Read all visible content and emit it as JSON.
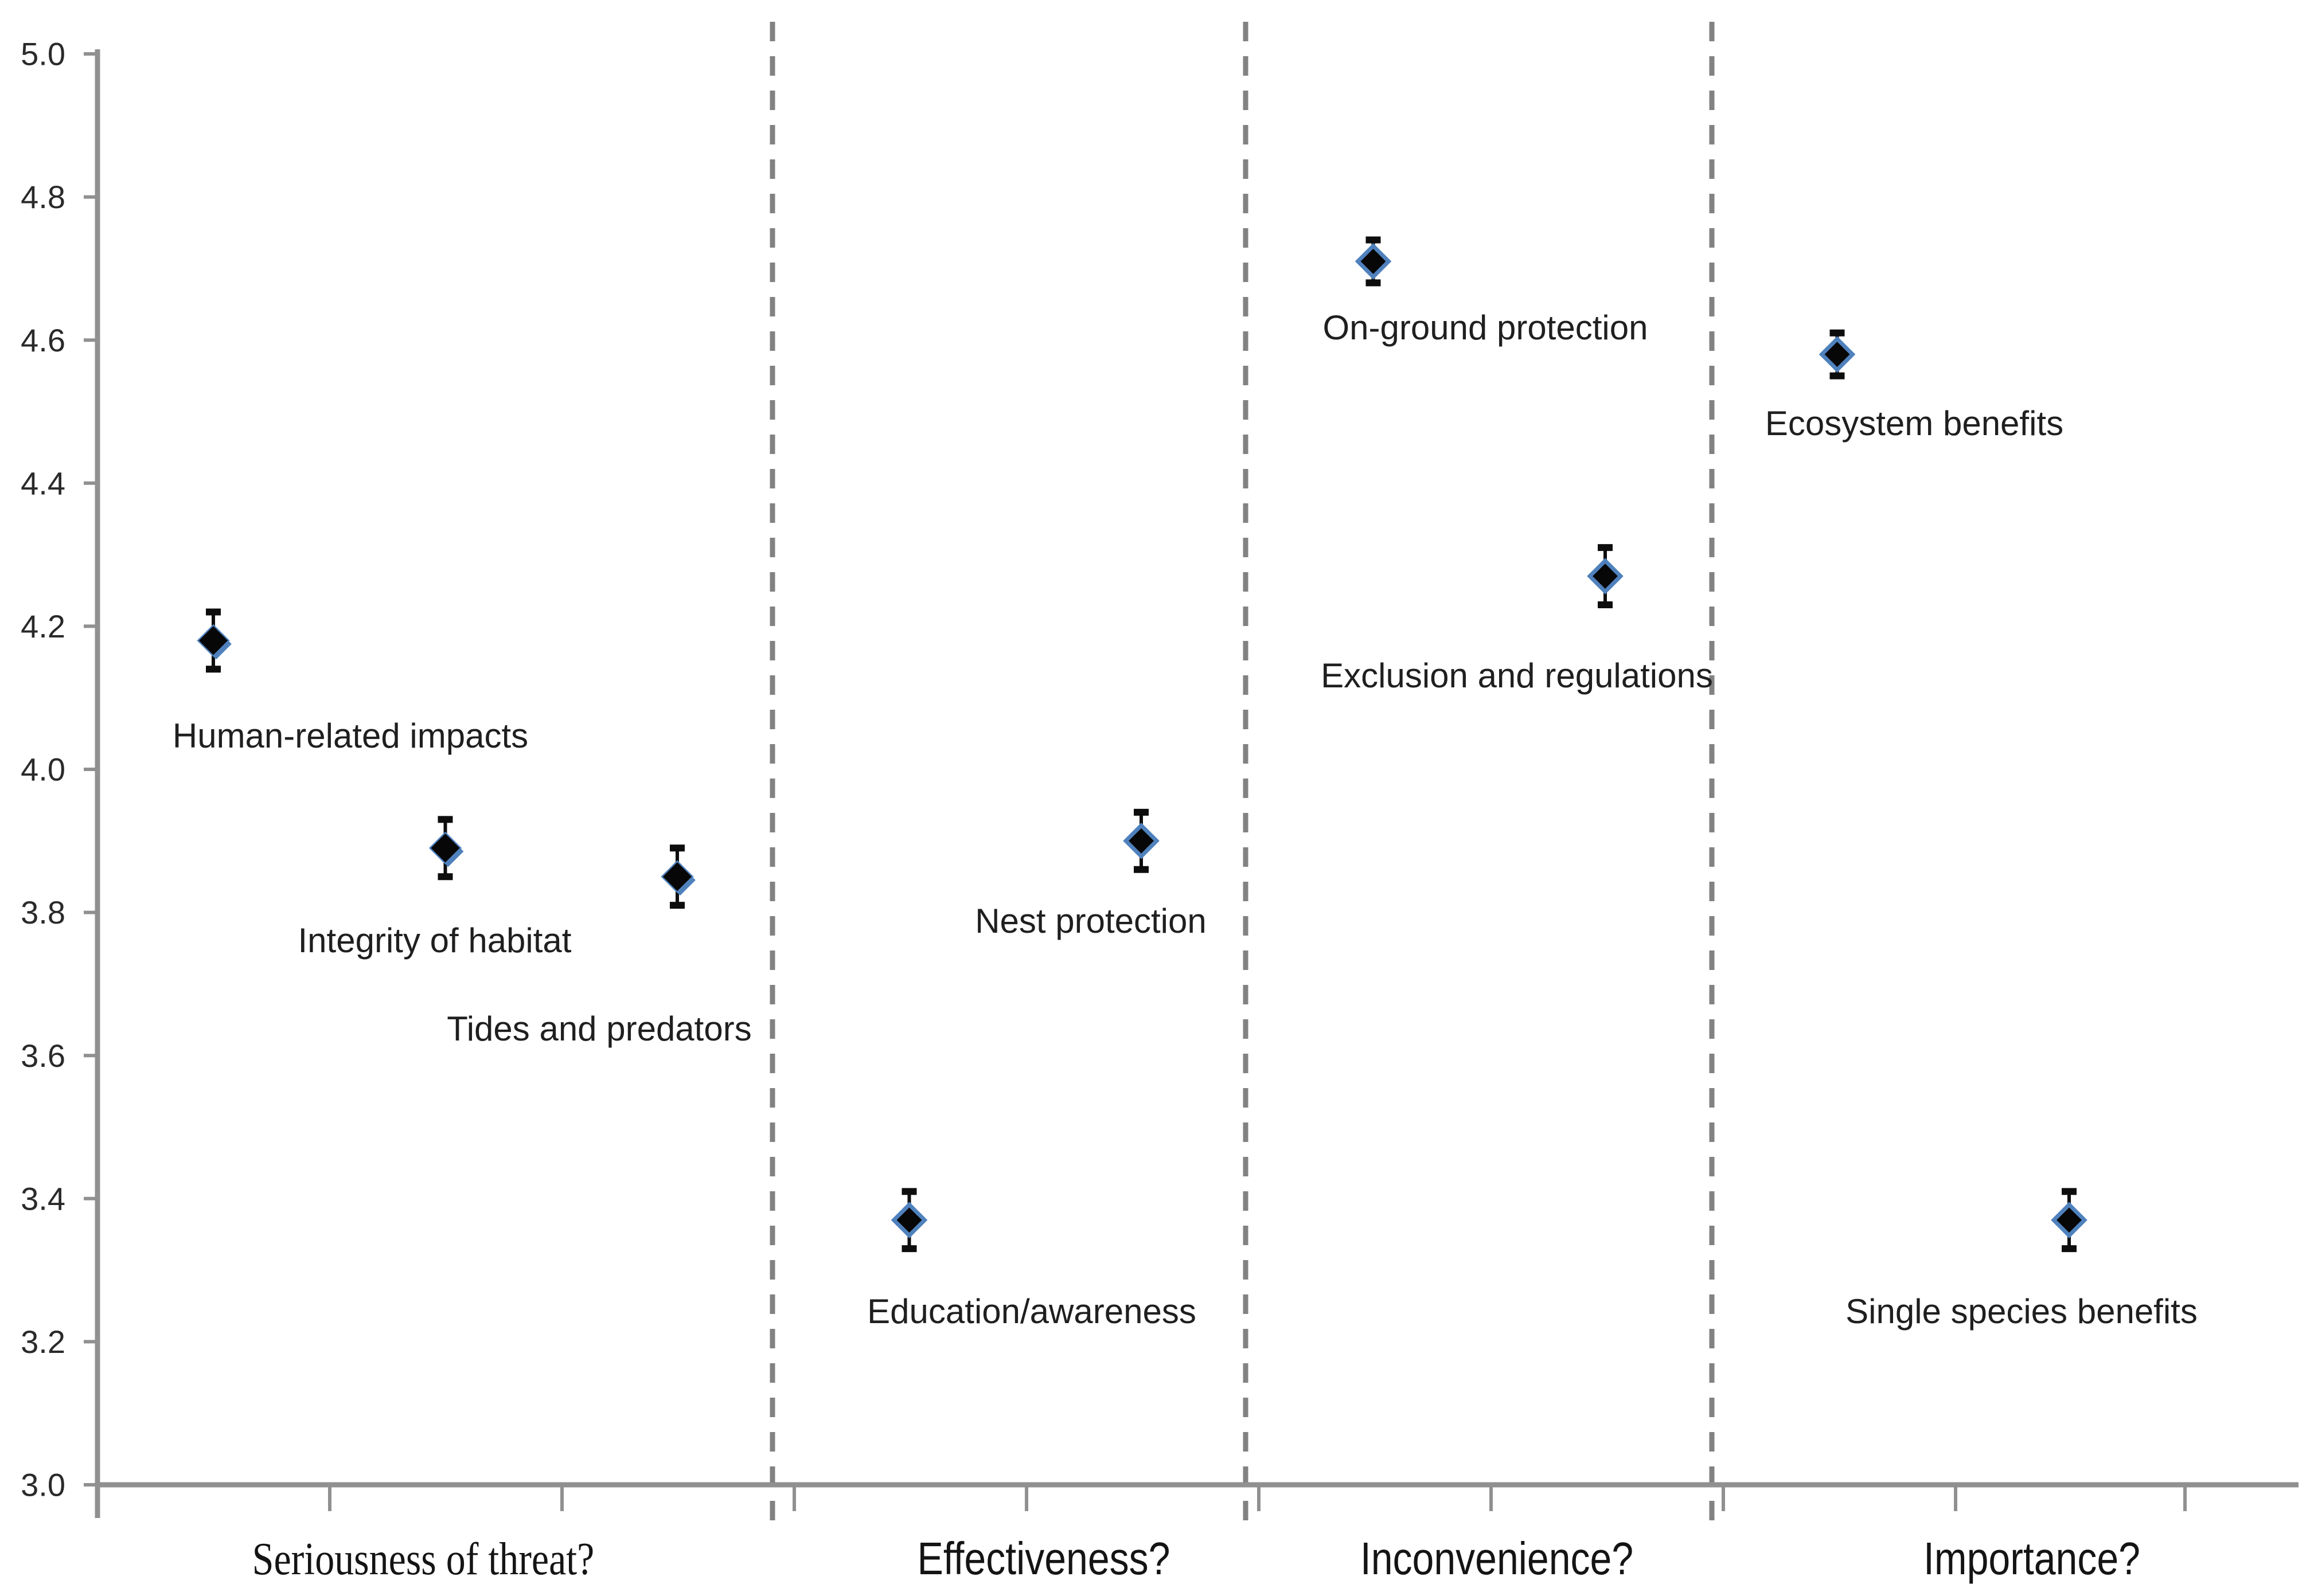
{
  "chart_data": {
    "type": "scatter",
    "title": "",
    "xlabel": "",
    "ylabel": "",
    "ylim": [
      3.0,
      5.0
    ],
    "ytick_step": 0.2,
    "yticks": [
      "5.0",
      "4.8",
      "4.6",
      "4.4",
      "4.2",
      "4.0",
      "3.8",
      "3.6",
      "3.4",
      "3.2",
      "3.0"
    ],
    "grid": false,
    "legend_position": "none",
    "marker": "diamond",
    "error_bars": true,
    "sections": [
      {
        "label": "Seriousness of threat?"
      },
      {
        "label": "Effectiveness?"
      },
      {
        "label": "Inconvenience?"
      },
      {
        "label": "Importance?"
      }
    ],
    "points": [
      {
        "label": "Human-related impacts",
        "section": "Seriousness of threat?",
        "value": 4.18,
        "error": 0.04
      },
      {
        "label": "Integrity of habitat",
        "section": "Seriousness of threat?",
        "value": 3.89,
        "error": 0.04
      },
      {
        "label": "Tides and predators",
        "section": "Seriousness of threat?",
        "value": 3.85,
        "error": 0.04
      },
      {
        "label": "Education/awareness",
        "section": "Effectiveness?",
        "value": 3.37,
        "error": 0.04
      },
      {
        "label": "Nest protection",
        "section": "Effectiveness?",
        "value": 3.9,
        "error": 0.04
      },
      {
        "label": "On-ground protection",
        "section": "Inconvenience?",
        "value": 4.71,
        "error": 0.03
      },
      {
        "label": "Exclusion and regulations",
        "section": "Inconvenience?",
        "value": 4.27,
        "error": 0.04
      },
      {
        "label": "Ecosystem benefits",
        "section": "Importance?",
        "value": 4.58,
        "error": 0.03
      },
      {
        "label": "Single species benefits",
        "section": "Importance?",
        "value": 3.37,
        "error": 0.04
      }
    ]
  },
  "colors": {
    "background": "#ffffff",
    "marker_fill": "#070707",
    "marker_border": "#4f81bd",
    "error_bar": "#0d0d0d",
    "axis": "#909090",
    "dashed_separator": "#828282",
    "text": "#1f1f1f"
  }
}
